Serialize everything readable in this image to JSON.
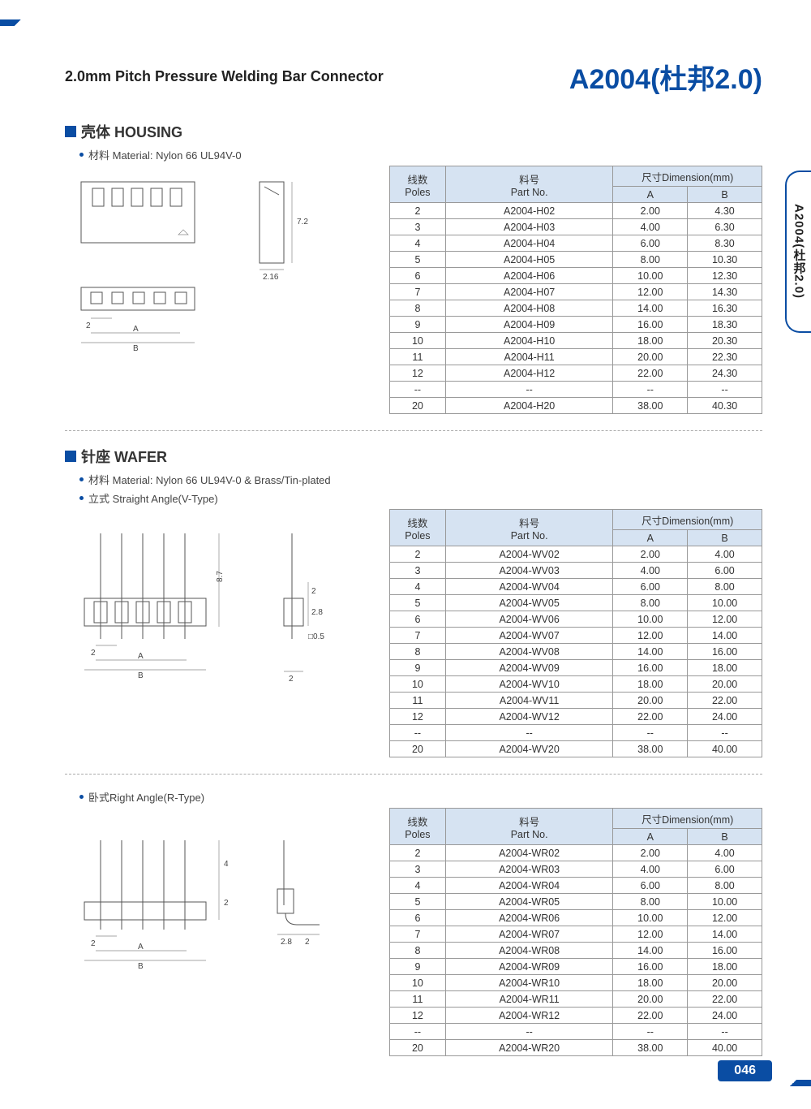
{
  "header": {
    "subtitle": "2.0mm Pitch Pressure Welding Bar Connector",
    "code": "A2004(杜邦2.0)"
  },
  "sideTab": "A2004(杜邦2.0)",
  "pageNumber": "046",
  "tableHeaders": {
    "poles_cn": "线数",
    "poles_en": "Poles",
    "part_cn": "料号",
    "part_en": "Part No.",
    "dim_cn": "尺寸Dimension(mm)",
    "dim_a": "A",
    "dim_b": "B"
  },
  "sections": [
    {
      "title": "壳体 HOUSING",
      "bullets": [
        "材料 Material: Nylon 66 UL94V-0"
      ],
      "drawing": "housing",
      "rows": [
        [
          "2",
          "A2004-H02",
          "2.00",
          "4.30"
        ],
        [
          "3",
          "A2004-H03",
          "4.00",
          "6.30"
        ],
        [
          "4",
          "A2004-H04",
          "6.00",
          "8.30"
        ],
        [
          "5",
          "A2004-H05",
          "8.00",
          "10.30"
        ],
        [
          "6",
          "A2004-H06",
          "10.00",
          "12.30"
        ],
        [
          "7",
          "A2004-H07",
          "12.00",
          "14.30"
        ],
        [
          "8",
          "A2004-H08",
          "14.00",
          "16.30"
        ],
        [
          "9",
          "A2004-H09",
          "16.00",
          "18.30"
        ],
        [
          "10",
          "A2004-H10",
          "18.00",
          "20.30"
        ],
        [
          "11",
          "A2004-H11",
          "20.00",
          "22.30"
        ],
        [
          "12",
          "A2004-H12",
          "22.00",
          "24.30"
        ],
        [
          "--",
          "--",
          "--",
          "--"
        ],
        [
          "20",
          "A2004-H20",
          "38.00",
          "40.30"
        ]
      ]
    },
    {
      "title": "针座 WAFER",
      "bullets": [
        "材料 Material: Nylon 66 UL94V-0 & Brass/Tin-plated",
        "立式 Straight Angle(V-Type)"
      ],
      "drawing": "wafer_v",
      "rows": [
        [
          "2",
          "A2004-WV02",
          "2.00",
          "4.00"
        ],
        [
          "3",
          "A2004-WV03",
          "4.00",
          "6.00"
        ],
        [
          "4",
          "A2004-WV04",
          "6.00",
          "8.00"
        ],
        [
          "5",
          "A2004-WV05",
          "8.00",
          "10.00"
        ],
        [
          "6",
          "A2004-WV06",
          "10.00",
          "12.00"
        ],
        [
          "7",
          "A2004-WV07",
          "12.00",
          "14.00"
        ],
        [
          "8",
          "A2004-WV08",
          "14.00",
          "16.00"
        ],
        [
          "9",
          "A2004-WV09",
          "16.00",
          "18.00"
        ],
        [
          "10",
          "A2004-WV10",
          "18.00",
          "20.00"
        ],
        [
          "11",
          "A2004-WV11",
          "20.00",
          "22.00"
        ],
        [
          "12",
          "A2004-WV12",
          "22.00",
          "24.00"
        ],
        [
          "--",
          "--",
          "--",
          "--"
        ],
        [
          "20",
          "A2004-WV20",
          "38.00",
          "40.00"
        ]
      ]
    },
    {
      "title": "",
      "bullets": [
        "卧式Right Angle(R-Type)"
      ],
      "drawing": "wafer_r",
      "rows": [
        [
          "2",
          "A2004-WR02",
          "2.00",
          "4.00"
        ],
        [
          "3",
          "A2004-WR03",
          "4.00",
          "6.00"
        ],
        [
          "4",
          "A2004-WR04",
          "6.00",
          "8.00"
        ],
        [
          "5",
          "A2004-WR05",
          "8.00",
          "10.00"
        ],
        [
          "6",
          "A2004-WR06",
          "10.00",
          "12.00"
        ],
        [
          "7",
          "A2004-WR07",
          "12.00",
          "14.00"
        ],
        [
          "8",
          "A2004-WR08",
          "14.00",
          "16.00"
        ],
        [
          "9",
          "A2004-WR09",
          "16.00",
          "18.00"
        ],
        [
          "10",
          "A2004-WR10",
          "18.00",
          "20.00"
        ],
        [
          "11",
          "A2004-WR11",
          "20.00",
          "22.00"
        ],
        [
          "12",
          "A2004-WR12",
          "22.00",
          "24.00"
        ],
        [
          "--",
          "--",
          "--",
          "--"
        ],
        [
          "20",
          "A2004-WR20",
          "38.00",
          "40.00"
        ]
      ]
    }
  ],
  "drawingLabels": {
    "housing": {
      "h": "7.2",
      "w": "2.16",
      "pitch": "2",
      "a": "A",
      "b": "B"
    },
    "wafer_v": {
      "h": "8.7",
      "pitch": "2",
      "a": "A",
      "b": "B",
      "side_h": "2.8",
      "side_top": "2",
      "sq": "□0.5",
      "base": "2"
    },
    "wafer_r": {
      "h": "4",
      "mid": "2",
      "pitch": "2",
      "a": "A",
      "b": "B",
      "tail1": "2.8",
      "tail2": "2"
    }
  }
}
